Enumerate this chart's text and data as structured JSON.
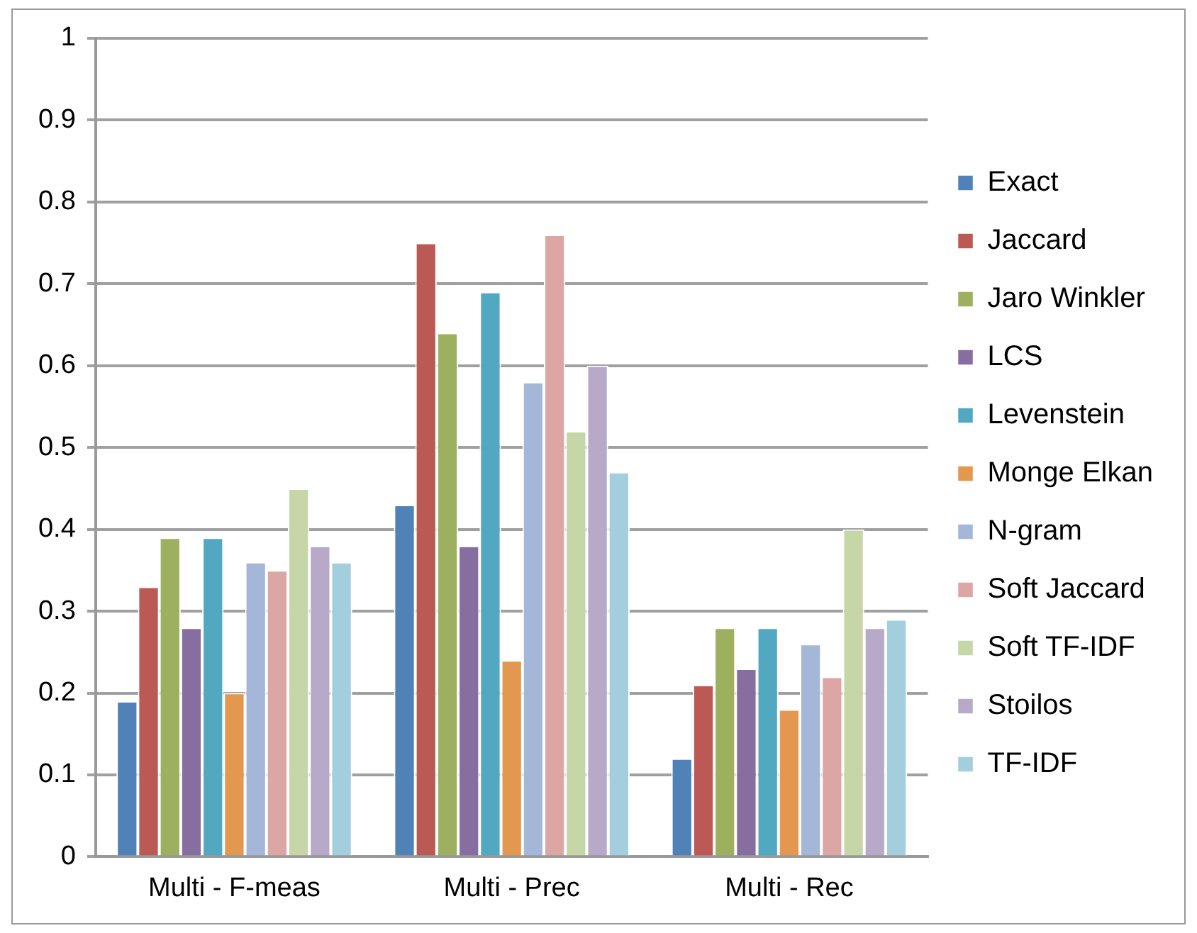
{
  "chart_data": {
    "type": "bar",
    "categories": [
      "Multi - F-meas",
      "Multi - Prec",
      "Multi - Rec"
    ],
    "series": [
      {
        "name": "Exact",
        "color": "#5082b7",
        "values": [
          0.19,
          0.43,
          0.12
        ]
      },
      {
        "name": "Jaccard",
        "color": "#bb5a55",
        "values": [
          0.33,
          0.75,
          0.21
        ]
      },
      {
        "name": "Jaro Winkler",
        "color": "#9db05f",
        "values": [
          0.39,
          0.64,
          0.28
        ]
      },
      {
        "name": "LCS",
        "color": "#876ea0",
        "values": [
          0.28,
          0.38,
          0.23
        ]
      },
      {
        "name": "Levenstein",
        "color": "#52a8c1",
        "values": [
          0.39,
          0.69,
          0.28
        ]
      },
      {
        "name": "Monge Elkan",
        "color": "#e4974f",
        "values": [
          0.2,
          0.24,
          0.18
        ]
      },
      {
        "name": "N-gram",
        "color": "#a4b7d8",
        "values": [
          0.36,
          0.58,
          0.26
        ]
      },
      {
        "name": "Soft Jaccard",
        "color": "#dba6a4",
        "values": [
          0.35,
          0.76,
          0.22
        ]
      },
      {
        "name": "Soft TF-IDF",
        "color": "#c6d6a7",
        "values": [
          0.45,
          0.52,
          0.4
        ]
      },
      {
        "name": "Stoilos",
        "color": "#b8a9c9",
        "values": [
          0.38,
          0.6,
          0.28
        ]
      },
      {
        "name": "TF-IDF",
        "color": "#a2cedd",
        "values": [
          0.36,
          0.47,
          0.29
        ]
      }
    ],
    "ylim": [
      0,
      1
    ],
    "yticks": [
      0,
      0.1,
      0.2,
      0.3,
      0.4,
      0.5,
      0.6,
      0.7,
      0.8,
      0.9,
      1
    ],
    "grid": "y",
    "legend": "right"
  }
}
